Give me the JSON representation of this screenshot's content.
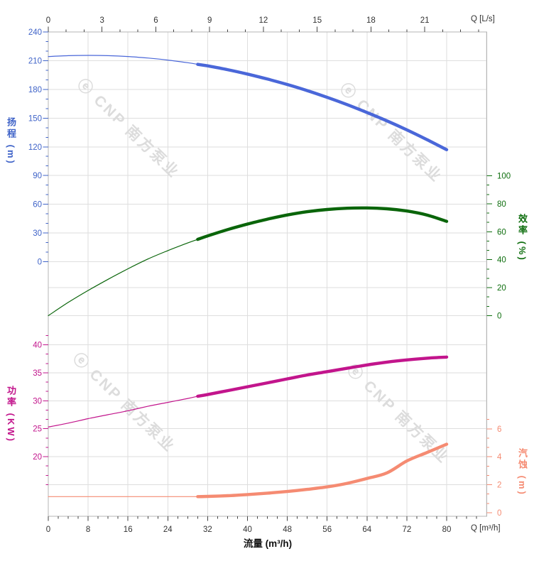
{
  "page": {
    "background": "#ffffff"
  },
  "watermark": {
    "text": "ⓔ CNP 南方泵业",
    "color": "#dcdcdc"
  },
  "chart_data": {
    "type": "line",
    "title": "",
    "grid": true,
    "legend": false,
    "x_axis_bottom": {
      "name": "流量 (m³/h)",
      "unit_label": "Q [m³/h]",
      "range": [
        0,
        88
      ],
      "major_ticks": [
        0,
        8,
        16,
        24,
        32,
        40,
        48,
        56,
        64,
        72,
        80
      ],
      "minor_step": 2,
      "color": "#333333"
    },
    "x_axis_top": {
      "unit_label": "Q [L/s]",
      "range": [
        0,
        24.45
      ],
      "major_ticks": [
        0,
        3,
        6,
        9,
        12,
        15,
        18,
        21
      ],
      "minor_step": 1,
      "color": "#333333"
    },
    "y_axes": {
      "head": {
        "name": "扬程 (m)",
        "side": "left",
        "color": "#3f63c8",
        "range": [
          0,
          240
        ],
        "major_ticks": [
          240,
          210,
          180,
          150,
          120,
          90,
          60,
          30,
          0
        ],
        "minor_step": 10
      },
      "efficiency": {
        "name": "效率 (%)",
        "side": "right",
        "color": "#0e6e0e",
        "range": [
          0,
          100
        ],
        "major_ticks": [
          100,
          80,
          60,
          40,
          20,
          0
        ],
        "minor_step": 6.6667
      },
      "power": {
        "name": "功率 (KW)",
        "side": "left",
        "color": "#c2158c",
        "range": [
          20,
          40
        ],
        "major_ticks": [
          40,
          35,
          30,
          25,
          20
        ],
        "minor_step": 1.6667
      },
      "npsh": {
        "name": "汽蚀 (m)",
        "side": "right",
        "color": "#f58b72",
        "range": [
          0,
          6
        ],
        "major_ticks": [
          6,
          4,
          2,
          0
        ],
        "minor_step": 0.6667
      }
    },
    "series": [
      {
        "name": "head",
        "axis": "head",
        "color": "#4a67d9",
        "bold_from": 30,
        "points": [
          [
            0,
            214.3
          ],
          [
            4,
            215.2
          ],
          [
            8,
            215.5
          ],
          [
            12,
            215.2
          ],
          [
            16,
            214.3
          ],
          [
            20,
            212.8
          ],
          [
            24,
            210.6
          ],
          [
            28,
            207.9
          ],
          [
            30,
            206.2
          ],
          [
            32,
            204.6
          ],
          [
            36,
            200.6
          ],
          [
            40,
            196.0
          ],
          [
            44,
            190.8
          ],
          [
            48,
            185.1
          ],
          [
            52,
            178.7
          ],
          [
            56,
            171.7
          ],
          [
            60,
            164.1
          ],
          [
            64,
            155.9
          ],
          [
            68,
            147.1
          ],
          [
            72,
            137.7
          ],
          [
            76,
            127.6
          ],
          [
            80,
            117.0
          ]
        ]
      },
      {
        "name": "efficiency",
        "axis": "efficiency",
        "color": "#0a650a",
        "bold_from": 30,
        "points": [
          [
            0,
            0
          ],
          [
            4,
            9.5
          ],
          [
            8,
            18
          ],
          [
            12,
            26
          ],
          [
            16,
            33.5
          ],
          [
            20,
            40.5
          ],
          [
            24,
            46.5
          ],
          [
            28,
            52
          ],
          [
            30,
            54.5
          ],
          [
            32,
            57
          ],
          [
            36,
            61.5
          ],
          [
            40,
            65.5
          ],
          [
            44,
            69
          ],
          [
            48,
            72
          ],
          [
            52,
            74.3
          ],
          [
            56,
            75.9
          ],
          [
            60,
            76.8
          ],
          [
            64,
            77.0
          ],
          [
            68,
            76.4
          ],
          [
            72,
            74.8
          ],
          [
            76,
            72.0
          ],
          [
            80,
            67.4
          ]
        ]
      },
      {
        "name": "power",
        "axis": "power",
        "color": "#c2158c",
        "bold_from": 30,
        "points": [
          [
            0,
            25.3
          ],
          [
            4,
            26.0
          ],
          [
            8,
            26.8
          ],
          [
            12,
            27.5
          ],
          [
            16,
            28.2
          ],
          [
            20,
            29.0
          ],
          [
            24,
            29.7
          ],
          [
            28,
            30.4
          ],
          [
            30,
            30.8
          ],
          [
            32,
            31.1
          ],
          [
            36,
            31.8
          ],
          [
            40,
            32.5
          ],
          [
            44,
            33.2
          ],
          [
            48,
            33.9
          ],
          [
            52,
            34.6
          ],
          [
            56,
            35.2
          ],
          [
            60,
            35.8
          ],
          [
            64,
            36.4
          ],
          [
            68,
            36.9
          ],
          [
            72,
            37.3
          ],
          [
            76,
            37.6
          ],
          [
            80,
            37.8
          ]
        ]
      },
      {
        "name": "npsh",
        "axis": "npsh",
        "color": "#f58b72",
        "bold_from": 30,
        "points": [
          [
            0,
            1.15
          ],
          [
            4,
            1.15
          ],
          [
            8,
            1.15
          ],
          [
            12,
            1.15
          ],
          [
            16,
            1.15
          ],
          [
            20,
            1.15
          ],
          [
            24,
            1.15
          ],
          [
            28,
            1.15
          ],
          [
            30,
            1.15
          ],
          [
            32,
            1.17
          ],
          [
            36,
            1.22
          ],
          [
            40,
            1.3
          ],
          [
            44,
            1.4
          ],
          [
            48,
            1.52
          ],
          [
            52,
            1.67
          ],
          [
            56,
            1.85
          ],
          [
            60,
            2.1
          ],
          [
            64,
            2.45
          ],
          [
            68,
            2.85
          ],
          [
            72,
            3.7
          ],
          [
            76,
            4.3
          ],
          [
            80,
            4.9
          ]
        ]
      }
    ]
  }
}
